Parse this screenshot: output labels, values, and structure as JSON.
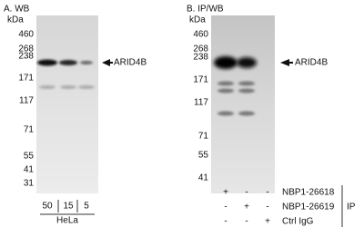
{
  "panel_a": {
    "title": "A. WB",
    "unit": "kDa",
    "markers": [
      460,
      268,
      238,
      171,
      117,
      71,
      55,
      41,
      31
    ],
    "target": "ARID4B",
    "lanes": [
      "50",
      "15",
      "5"
    ],
    "sample": "HeLa"
  },
  "panel_b": {
    "title": "B. IP/WB",
    "unit": "kDa",
    "markers": [
      460,
      268,
      238,
      171,
      117,
      71,
      55,
      41
    ],
    "target": "ARID4B",
    "rows": [
      [
        "+",
        "-",
        "-",
        "NBP1-26618"
      ],
      [
        "-",
        "+",
        "-",
        "NBP1-26619"
      ],
      [
        "-",
        "-",
        "+",
        "Ctrl IgG"
      ]
    ],
    "ip": "IP"
  }
}
